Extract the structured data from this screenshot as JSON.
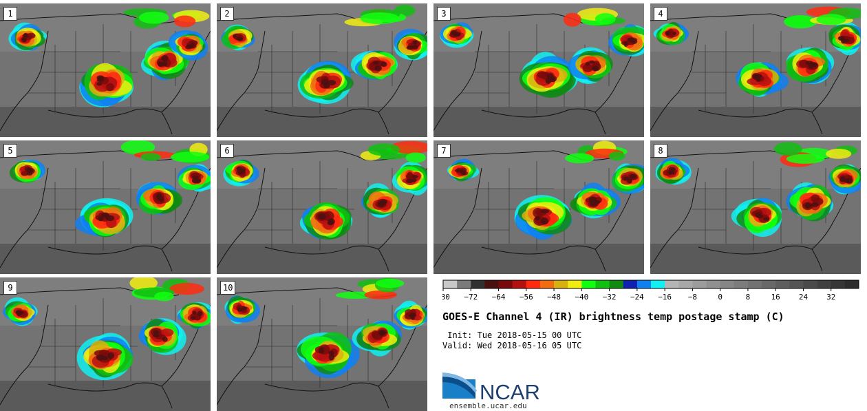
{
  "panels": [
    "1",
    "2",
    "3",
    "4",
    "5",
    "6",
    "7",
    "8",
    "9",
    "10"
  ],
  "colorbar": {
    "ticks": [
      "−80",
      "−72",
      "−64",
      "−56",
      "−48",
      "−40",
      "−32",
      "−24",
      "−16",
      "−8",
      "0",
      "8",
      "16",
      "24",
      "32"
    ],
    "colors": [
      "#c8c8c8",
      "#7a7a7a",
      "#303030",
      "#4a1010",
      "#7a0a0a",
      "#b41010",
      "#ff2a10",
      "#f06e10",
      "#d8b010",
      "#f0ec10",
      "#10ff10",
      "#10c010",
      "#108a10",
      "#1020b0",
      "#1080f0",
      "#10f0f0",
      "#b4b4b4",
      "#a8a8a8",
      "#9c9c9c",
      "#909090",
      "#868686",
      "#7c7c7c",
      "#727272",
      "#686868",
      "#5e5e5e",
      "#545454",
      "#4a4a4a",
      "#404040",
      "#363636",
      "#2c2c2c"
    ]
  },
  "title": "GOES-E Channel 4 (IR) brightness temp postage stamp (C)",
  "init": " Init: Tue 2018-05-15 00 UTC",
  "valid": "Valid: Wed 2018-05-16 05 UTC",
  "logo_text": "NCAR",
  "url": "ensemble.ucar.edu"
}
